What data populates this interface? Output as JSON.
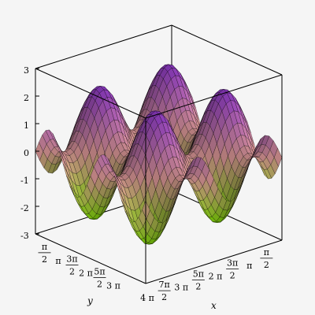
{
  "chart_data": {
    "type": "surface3d",
    "function": "sin(x) + sin(y)",
    "x_range": [
      "0",
      "4π"
    ],
    "y_range": [
      "0",
      "4π"
    ],
    "zlim": [
      -3,
      3
    ],
    "z_ticks": [
      "3",
      "2",
      "1",
      "0",
      "-1",
      "-2",
      "-3"
    ],
    "x_ticks": [
      "4 π",
      "7π/2",
      "3 π",
      "5π/2",
      "2 π",
      "3π/2",
      "π",
      "π/2"
    ],
    "y_ticks": [
      "π/2",
      "π",
      "3π/2",
      "2 π",
      "5π/2",
      "3 π"
    ],
    "xlabel": "x",
    "ylabel": "y",
    "box": true,
    "colors": {
      "high": "#9b3ed8",
      "mid": "#e8a0a0",
      "low": "#7fe000",
      "mesh": "#000000",
      "box": "#000000",
      "background": "#f5f5f5"
    }
  }
}
